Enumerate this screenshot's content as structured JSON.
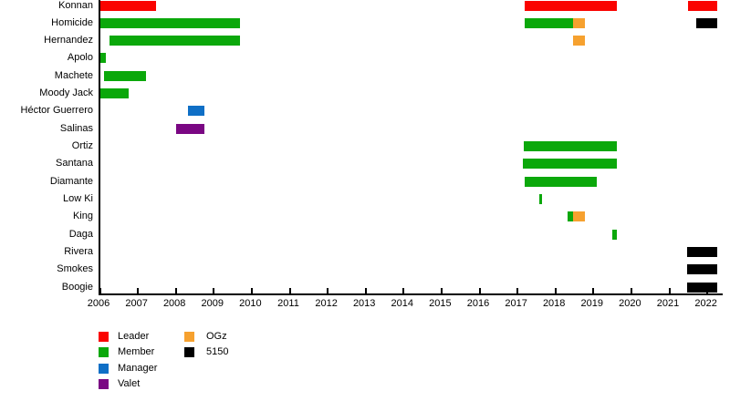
{
  "chart_data": {
    "type": "bar",
    "subtype": "gantt-membership-timeline",
    "title": "",
    "xlabel": "",
    "ylabel": "",
    "grid": false,
    "legend_position": "bottom-left",
    "x_axis": {
      "min": 2006.0,
      "max": 2022.4,
      "tick_years": [
        2006,
        2007,
        2008,
        2009,
        2010,
        2011,
        2012,
        2013,
        2014,
        2015,
        2016,
        2017,
        2018,
        2019,
        2020,
        2021,
        2022
      ]
    },
    "role_colors": {
      "Leader": "#fa0300",
      "Member": "#0ba80b",
      "Manager": "#0f6fc6",
      "Valet": "#7a0783",
      "OGz": "#f6a12f",
      "5150": "#000000"
    },
    "rows": [
      {
        "name": "Konnan",
        "segments": [
          {
            "role": "Leader",
            "start": 2006.02,
            "end": 2007.48
          },
          {
            "role": "Leader",
            "start": 2017.2,
            "end": 2019.62
          },
          {
            "role": "Leader",
            "start": 2021.5,
            "end": 2022.28
          }
        ]
      },
      {
        "name": "Homicide",
        "segments": [
          {
            "role": "Member",
            "start": 2006.02,
            "end": 2009.7
          },
          {
            "role": "Member",
            "start": 2017.2,
            "end": 2018.48
          },
          {
            "role": "OGz",
            "start": 2018.48,
            "end": 2018.8
          },
          {
            "role": "5150",
            "start": 2021.72,
            "end": 2022.28
          }
        ]
      },
      {
        "name": "Hernandez",
        "segments": [
          {
            "role": "Member",
            "start": 2006.26,
            "end": 2009.7
          },
          {
            "role": "OGz",
            "start": 2018.48,
            "end": 2018.8
          }
        ]
      },
      {
        "name": "Apolo",
        "segments": [
          {
            "role": "Member",
            "start": 2006.02,
            "end": 2006.16
          }
        ]
      },
      {
        "name": "Machete",
        "segments": [
          {
            "role": "Member",
            "start": 2006.12,
            "end": 2007.22
          }
        ]
      },
      {
        "name": "Moody Jack",
        "segments": [
          {
            "role": "Member",
            "start": 2006.02,
            "end": 2006.78
          }
        ]
      },
      {
        "name": "Héctor Guerrero",
        "segments": [
          {
            "role": "Manager",
            "start": 2008.32,
            "end": 2008.76
          }
        ]
      },
      {
        "name": "Salinas",
        "segments": [
          {
            "role": "Valet",
            "start": 2008.02,
            "end": 2008.76
          }
        ]
      },
      {
        "name": "Ortiz",
        "segments": [
          {
            "role": "Member",
            "start": 2017.17,
            "end": 2019.64
          }
        ]
      },
      {
        "name": "Santana",
        "segments": [
          {
            "role": "Member",
            "start": 2017.15,
            "end": 2019.64
          }
        ]
      },
      {
        "name": "Diamante",
        "segments": [
          {
            "role": "Member",
            "start": 2017.2,
            "end": 2019.1
          }
        ]
      },
      {
        "name": "Low Ki",
        "segments": [
          {
            "role": "Member",
            "start": 2017.58,
            "end": 2017.65
          }
        ]
      },
      {
        "name": "King",
        "segments": [
          {
            "role": "Member",
            "start": 2018.32,
            "end": 2018.48
          },
          {
            "role": "OGz",
            "start": 2018.48,
            "end": 2018.8
          }
        ]
      },
      {
        "name": "Daga",
        "segments": [
          {
            "role": "Member",
            "start": 2019.52,
            "end": 2019.63
          }
        ]
      },
      {
        "name": "Rivera",
        "segments": [
          {
            "role": "5150",
            "start": 2021.48,
            "end": 2022.28
          }
        ]
      },
      {
        "name": "Smokes",
        "segments": [
          {
            "role": "5150",
            "start": 2021.48,
            "end": 2022.28
          }
        ]
      },
      {
        "name": "Boogie",
        "segments": [
          {
            "role": "5150",
            "start": 2021.48,
            "end": 2022.28
          }
        ]
      }
    ],
    "legend": [
      {
        "label": "Leader",
        "color": "#fa0300",
        "column": 0
      },
      {
        "label": "Member",
        "color": "#0ba80b",
        "column": 0
      },
      {
        "label": "Manager",
        "color": "#0f6fc6",
        "column": 0
      },
      {
        "label": "Valet",
        "color": "#7a0783",
        "column": 0
      },
      {
        "label": "OGz",
        "color": "#f6a12f",
        "column": 1
      },
      {
        "label": "5150",
        "color": "#000000",
        "column": 1
      }
    ]
  }
}
